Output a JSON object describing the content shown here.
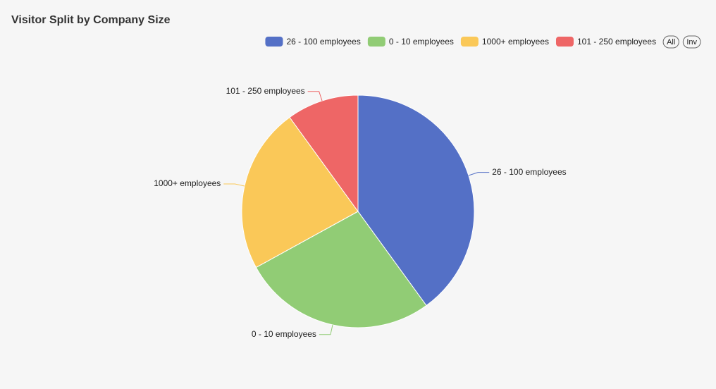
{
  "chart_data": {
    "type": "pie",
    "title": "Visitor Split by Company Size",
    "categories": [
      "26 - 100 employees",
      "0 - 10 employees",
      "1000+ employees",
      "101 - 250 employees"
    ],
    "values": [
      40,
      27,
      23,
      10
    ],
    "colors": [
      "#5470c6",
      "#91cc75",
      "#fac858",
      "#ee6666"
    ],
    "legend": "top-right",
    "legend_buttons": [
      "All",
      "Inv"
    ]
  }
}
